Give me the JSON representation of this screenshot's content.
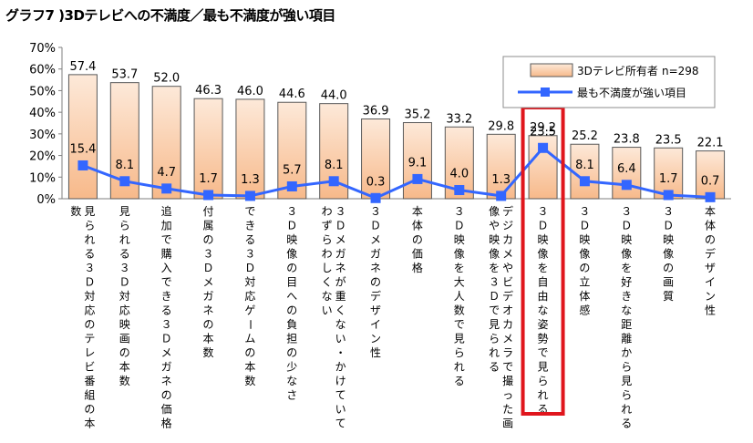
{
  "chart_data": {
    "type": "bar",
    "title": "グラフ7 )3Dテレビへの不満度／最も不満度が強い項目",
    "xlabel": "",
    "ylabel": "",
    "ylim": [
      0,
      70
    ],
    "yticks": [
      "0%",
      "10%",
      "20%",
      "30%",
      "40%",
      "50%",
      "60%",
      "70%"
    ],
    "grid": false,
    "legend_position": "top-right",
    "categories": [
      "見られる３Ｄ対応のテレビ番組の本数",
      "見られる３Ｄ対応映画の本数",
      "追加で購入できる３Ｄメガネの価格",
      "付属の３Ｄメガネの本数",
      "できる３Ｄ対応ゲームの本数",
      "３Ｄ映像の目への負担の少なさ",
      "３Ｄメガネが重くない・かけていてわずらわしくない",
      "３Ｄメガネのデザイン性",
      "本体の価格",
      "３Ｄ映像を大人数で見られる",
      "デジカメやビデオカメラで撮った画像や映像を３Ｄで見られる",
      "３Ｄ映像を自由な姿勢で見られる",
      "３Ｄ映像の立体感",
      "３Ｄ映像を好きな距離から見られる",
      "３Ｄ映像の画質",
      "本体のデザイン性"
    ],
    "highlight_index": 11,
    "series": [
      {
        "name": "3Dテレビ所有者",
        "type": "bar",
        "values": [
          57.4,
          53.7,
          52.0,
          46.3,
          46.0,
          44.6,
          44.0,
          36.9,
          35.2,
          33.2,
          29.8,
          29.2,
          25.2,
          23.8,
          23.5,
          22.1
        ],
        "labels": [
          "57.4",
          "53.7",
          "52.0",
          "46.3",
          "46.0",
          "44.6",
          "44.0",
          "36.9",
          "35.2",
          "33.2",
          "29.8",
          "29.2",
          "25.2",
          "23.8",
          "23.5",
          "22.1"
        ]
      },
      {
        "name": "最も不満度が強い項目",
        "type": "line",
        "values": [
          15.4,
          8.1,
          4.7,
          1.7,
          1.3,
          5.7,
          8.1,
          0.3,
          9.1,
          4.0,
          1.3,
          23.5,
          8.1,
          6.4,
          1.7,
          0.7
        ],
        "labels": [
          "15.4",
          "8.1",
          "4.7",
          "1.7",
          "1.3",
          "5.7",
          "8.1",
          "0.3",
          "9.1",
          "4.0",
          "1.3",
          "23.5",
          "8.1",
          "6.4",
          "1.7",
          "0.7"
        ]
      }
    ],
    "legend": {
      "bar_label": "3Dテレビ所有者",
      "bar_note": "n=298",
      "line_label": "最も不満度が強い項目"
    },
    "colors": {
      "bar_fill_top": "#fde9d9",
      "bar_fill_bottom": "#f7b98a",
      "bar_stroke": "#595959",
      "line": "#3366ff",
      "marker": "#3366ff",
      "highlight": "#e0161d"
    }
  }
}
